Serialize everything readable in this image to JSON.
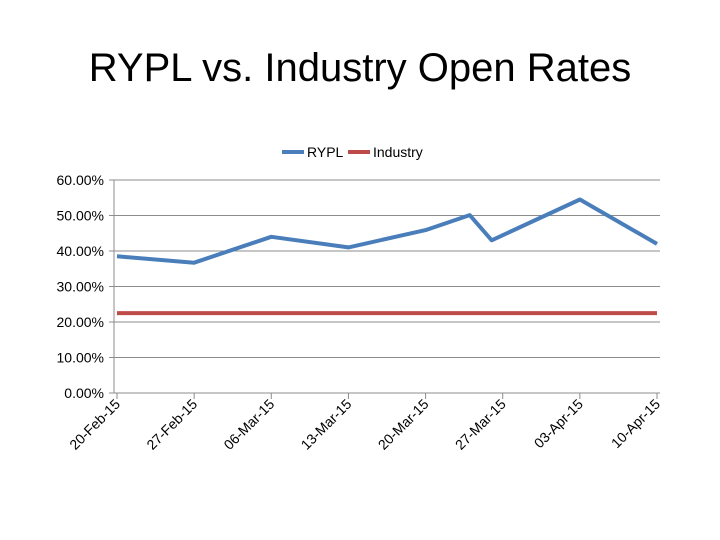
{
  "slide": {
    "title": "RYPL vs. Industry Open Rates"
  },
  "chart_data": {
    "type": "line",
    "title": "RYPL vs. Industry Open Rates",
    "xlabel": "",
    "ylabel": "",
    "x": [
      0,
      7,
      14,
      21,
      28,
      32,
      34,
      42,
      49
    ],
    "tick_positions": [
      0,
      7,
      14,
      21,
      28,
      35,
      42,
      49
    ],
    "tick_labels": [
      "20-Feb-15",
      "27-Feb-15",
      "06-Mar-15",
      "13-Mar-15",
      "20-Mar-15",
      "27-Mar-15",
      "03-Apr-15",
      "10-Apr-15"
    ],
    "ylim": [
      0,
      60
    ],
    "ytick_values": [
      0,
      10,
      20,
      30,
      40,
      50,
      60
    ],
    "ytick_labels": [
      "0.00%",
      "10.00%",
      "20.00%",
      "30.00%",
      "40.00%",
      "50.00%",
      "60.00%"
    ],
    "grid": true,
    "legend": "top",
    "series": [
      {
        "name": "RYPL",
        "color": "#4a7ebb",
        "values": [
          38.5,
          36.7,
          44.0,
          41.0,
          45.9,
          50.1,
          43.0,
          54.5,
          42.0
        ]
      },
      {
        "name": "Industry",
        "color": "#be4b48",
        "values": [
          22.5,
          22.5,
          22.5,
          22.5,
          22.5,
          22.5,
          22.5,
          22.5,
          22.5
        ]
      }
    ]
  }
}
